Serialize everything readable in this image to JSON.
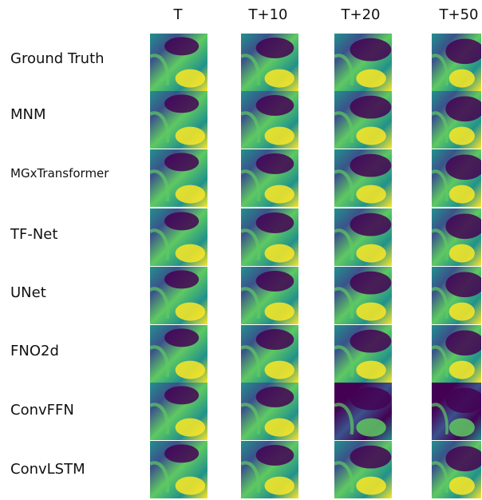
{
  "columns": [
    "T",
    "T+10",
    "T+20",
    "T+50"
  ],
  "rows": [
    "Ground Truth",
    "MNM",
    "MGxTransformer",
    "TF-Net",
    "UNet",
    "FNO2d",
    "ConvFFN",
    "ConvLSTM"
  ],
  "colormap": [
    "#440154",
    "#3b528b",
    "#21918c",
    "#5ec962",
    "#fde725"
  ]
}
